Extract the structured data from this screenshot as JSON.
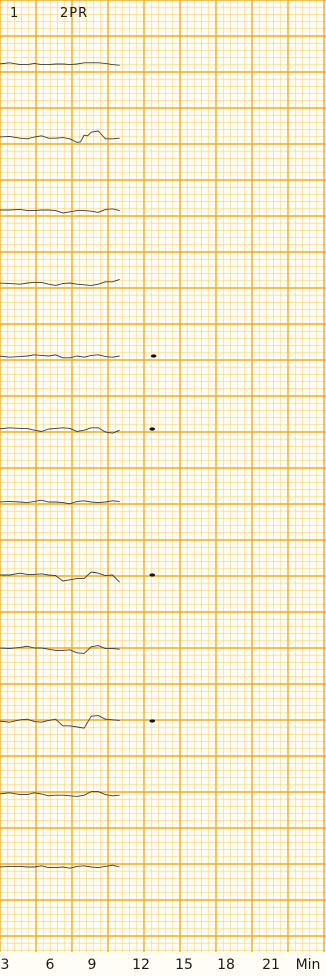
{
  "header": {
    "channel_label": "1",
    "series_label": "2PR"
  },
  "colors": {
    "paper": "#fffdf4",
    "grid_major": "#f0ab1d",
    "grid_minor": "#f7d178",
    "trace": "#3b3b3b",
    "ink_mark": "#111111"
  },
  "chart_data": {
    "type": "line",
    "title": "",
    "xlabel": "",
    "ylabel": "",
    "x_unit_label": "Min",
    "x_ticks": [
      3,
      6,
      9,
      12,
      15,
      18,
      21
    ],
    "xlim": [
      2.5,
      24
    ],
    "grid": true,
    "series": [
      {
        "x": [
          2.5,
          4,
          5,
          6,
          7,
          8,
          9,
          10,
          11
        ],
        "values": [
          0.0,
          -0.1,
          0.1,
          -0.1,
          0.0,
          0.0,
          0.2,
          0.1,
          -0.2
        ]
      },
      {
        "x": [
          2.5,
          4,
          5,
          6,
          7,
          8,
          8.5,
          9,
          10,
          11
        ],
        "values": [
          0.0,
          -0.2,
          0.0,
          -0.2,
          -0.1,
          -0.9,
          0.3,
          0.8,
          -0.3,
          -0.2
        ]
      },
      {
        "x": [
          2.5,
          4,
          5,
          6,
          7,
          8,
          9,
          10,
          11
        ],
        "values": [
          0.0,
          0.1,
          -0.1,
          0.0,
          -0.5,
          -0.1,
          -0.2,
          0.1,
          -0.1
        ]
      },
      {
        "x": [
          2.5,
          4,
          5,
          6,
          7,
          8,
          9,
          10,
          11
        ],
        "values": [
          0.0,
          -0.2,
          0.1,
          -0.2,
          -0.1,
          -0.2,
          -0.4,
          0.2,
          0.6
        ]
      },
      {
        "x": [
          2.5,
          4,
          5,
          6,
          7,
          8,
          9,
          10,
          11
        ],
        "values": [
          0.0,
          -0.1,
          0.2,
          0.0,
          -0.3,
          0.0,
          0.1,
          -0.1,
          0.0
        ]
      },
      {
        "x": [
          2.5,
          4,
          5,
          6,
          7,
          8,
          9,
          10,
          11
        ],
        "values": [
          0.0,
          0.1,
          -0.2,
          0.0,
          0.2,
          -0.4,
          0.2,
          -0.5,
          -0.2
        ]
      },
      {
        "x": [
          2.5,
          4,
          5,
          6,
          7,
          8,
          9,
          10,
          11
        ],
        "values": [
          0.0,
          0.0,
          0.1,
          0.0,
          -0.1,
          0.1,
          0.0,
          0.0,
          0.1
        ]
      },
      {
        "x": [
          2.5,
          4,
          5,
          6,
          7,
          8,
          9,
          10,
          11
        ],
        "values": [
          0.0,
          0.3,
          0.1,
          0.0,
          -1.0,
          -0.6,
          0.5,
          -0.1,
          -1.2
        ]
      },
      {
        "x": [
          2.5,
          4,
          5,
          6,
          7,
          8,
          9,
          10,
          11
        ],
        "values": [
          0.0,
          0.1,
          0.0,
          -0.2,
          -0.4,
          -0.8,
          0.2,
          -0.1,
          -0.2
        ]
      },
      {
        "x": [
          2.5,
          4,
          5,
          6,
          7,
          8,
          9,
          10,
          11
        ],
        "values": [
          0.0,
          0.2,
          -0.1,
          0.1,
          -0.8,
          -1.0,
          0.8,
          0.3,
          0.1
        ]
      },
      {
        "x": [
          2.5,
          4,
          5,
          6,
          7,
          8,
          9,
          10,
          11
        ],
        "values": [
          0.0,
          -0.1,
          0.2,
          -0.3,
          -0.2,
          -0.4,
          0.4,
          -0.1,
          -0.2
        ]
      },
      {
        "x": [
          2.5,
          4,
          5,
          6,
          7,
          8,
          9,
          10,
          11
        ],
        "values": [
          0.0,
          0.1,
          0.0,
          -0.1,
          0.0,
          0.1,
          0.0,
          0.1,
          0.0
        ]
      }
    ],
    "annotations": [
      {
        "kind": "ink-mark",
        "x": 13.4,
        "channel": 5
      },
      {
        "kind": "ink-mark",
        "x": 13.3,
        "channel": 6
      },
      {
        "kind": "ink-mark",
        "x": 13.3,
        "channel": 8
      },
      {
        "kind": "ink-mark",
        "x": 13.3,
        "channel": 10
      }
    ]
  }
}
